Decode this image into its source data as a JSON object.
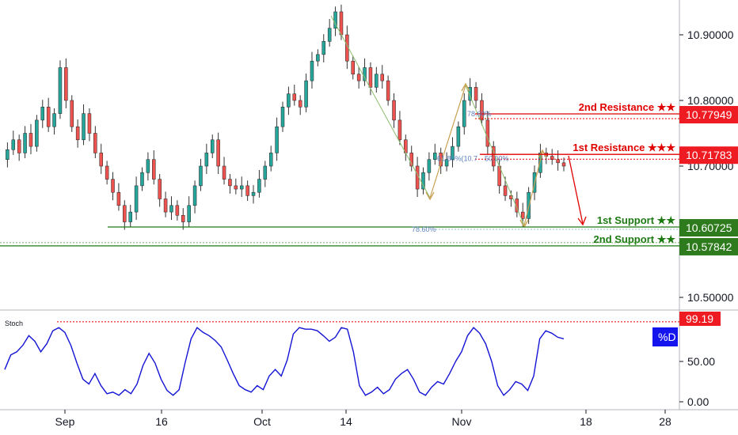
{
  "chart_data": {
    "type": "candlestick",
    "price_axis": {
      "min": 10.46,
      "max": 10.95,
      "ticks": [
        "10.90000",
        "10.80000",
        "10.70000",
        "10.50000"
      ],
      "tick_values": [
        10.9,
        10.8,
        10.7,
        10.5
      ]
    },
    "time_axis": {
      "labels": [
        "Sep",
        "16",
        "Oct",
        "14",
        "Nov",
        "18",
        "28"
      ]
    },
    "price_series": [
      10.71,
      10.725,
      10.74,
      10.72,
      10.75,
      10.73,
      10.77,
      10.79,
      10.76,
      10.78,
      10.85,
      10.8,
      10.76,
      10.74,
      10.78,
      10.75,
      10.72,
      10.7,
      10.68,
      10.66,
      10.64,
      10.615,
      10.63,
      10.67,
      10.69,
      10.71,
      10.68,
      10.65,
      10.63,
      10.64,
      10.625,
      10.615,
      10.64,
      10.67,
      10.7,
      10.72,
      10.74,
      10.7,
      10.68,
      10.67,
      10.665,
      10.67,
      10.655,
      10.66,
      10.68,
      10.7,
      10.72,
      10.76,
      10.79,
      10.81,
      10.8,
      10.79,
      10.83,
      10.86,
      10.87,
      10.89,
      10.91,
      10.935,
      10.9,
      10.86,
      10.84,
      10.83,
      10.85,
      10.82,
      10.84,
      10.83,
      10.8,
      10.77,
      10.74,
      10.72,
      10.7,
      10.665,
      10.69,
      10.71,
      10.72,
      10.7,
      10.71,
      10.73,
      10.76,
      10.8,
      10.82,
      10.8,
      10.77,
      10.73,
      10.7,
      10.67,
      10.655,
      10.65,
      10.63,
      10.62,
      10.66,
      10.69,
      10.72,
      10.715,
      10.71,
      10.705,
      10.7
    ],
    "levels": [
      {
        "name": "2nd Resistance ★★",
        "value": "10.77949",
        "price": 10.77949,
        "color": "#e00000",
        "tag_bg": "#ee1b22"
      },
      {
        "name": "1st Resistance ★★★",
        "value": "10.71783",
        "price": 10.71783,
        "color": "#e00000",
        "tag_bg": "#ee1b22"
      },
      {
        "name": "1st Support ★★",
        "value": "10.60725",
        "price": 10.60725,
        "color": "#1d7a12",
        "tag_bg": "#2d7b1c"
      },
      {
        "name": "2nd Support ★★",
        "value": "10.57842",
        "price": 10.57842,
        "color": "#1d7a12",
        "tag_bg": "#2d7b1c"
      }
    ],
    "fib_labels": [
      {
        "text": "78.60%",
        "price": 10.6
      },
      {
        "text": "78.60%",
        "price": 10.776
      },
      {
        "text": "61.80%(10.7",
        "price": 10.708
      },
      {
        "text": "50.00%",
        "price": 10.708
      }
    ],
    "indicator": {
      "name": "Stoch",
      "label": "%D",
      "current_value": "99.19",
      "level_value": 99.19,
      "ticks": [
        "50.00",
        "0.00"
      ],
      "tick_values": [
        50,
        0
      ],
      "values": [
        40,
        58,
        62,
        70,
        82,
        75,
        62,
        72,
        88,
        92,
        86,
        70,
        48,
        28,
        22,
        35,
        20,
        10,
        12,
        8,
        15,
        10,
        22,
        45,
        60,
        48,
        28,
        14,
        8,
        15,
        48,
        78,
        92,
        86,
        82,
        76,
        68,
        52,
        35,
        20,
        15,
        12,
        20,
        15,
        32,
        40,
        32,
        52,
        84,
        92,
        90,
        90,
        88,
        82,
        75,
        80,
        92,
        90,
        62,
        20,
        8,
        12,
        18,
        10,
        15,
        28,
        35,
        40,
        28,
        12,
        8,
        18,
        25,
        22,
        35,
        50,
        62,
        82,
        92,
        85,
        72,
        50,
        20,
        8,
        15,
        25,
        22,
        14,
        32,
        78,
        88,
        85,
        80,
        78
      ]
    }
  }
}
